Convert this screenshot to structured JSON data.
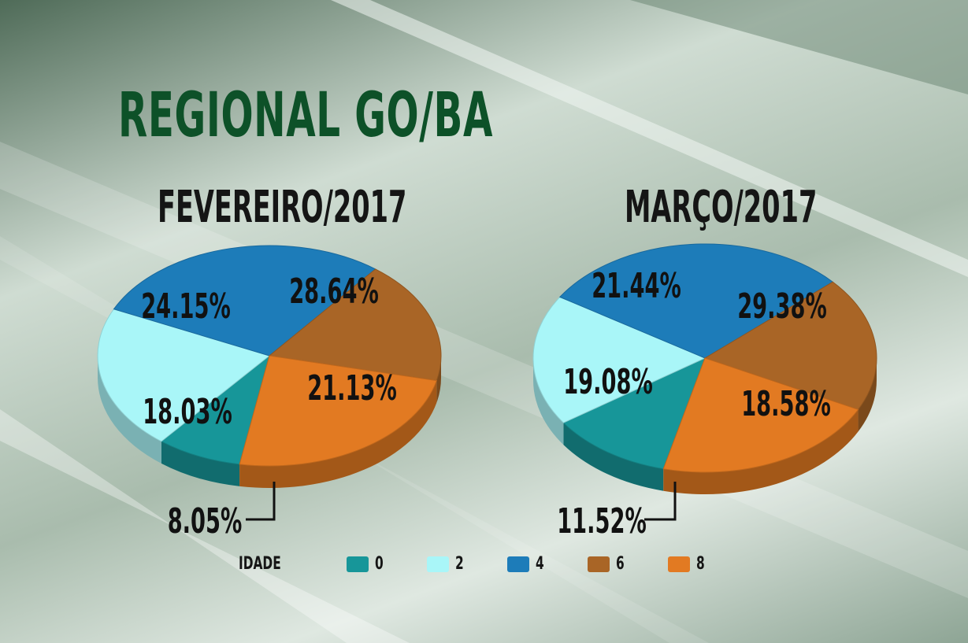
{
  "title": "REGIONAL GO/BA",
  "legend": {
    "title": "IDADE",
    "items": [
      {
        "label": "0",
        "color": "#179699"
      },
      {
        "label": "2",
        "color": "#a9f6f8"
      },
      {
        "label": "4",
        "color": "#1d7cb9"
      },
      {
        "label": "6",
        "color": "#a96526"
      },
      {
        "label": "8",
        "color": "#e27a22"
      }
    ]
  },
  "chart_data": [
    {
      "type": "pie",
      "title": "FEVEREIRO/2017",
      "categories": [
        "0",
        "2",
        "4",
        "6",
        "8"
      ],
      "values": [
        8.05,
        21.13,
        28.64,
        18.03,
        24.15
      ],
      "labels": [
        "8.05%",
        "21.13%",
        "28.64%",
        "18.03%",
        "24.15%"
      ]
    },
    {
      "type": "pie",
      "title": "MARÇO/2017",
      "categories": [
        "0",
        "2",
        "4",
        "6",
        "8"
      ],
      "values": [
        11.52,
        18.58,
        29.38,
        19.08,
        21.44
      ],
      "labels": [
        "11.52%",
        "18.58%",
        "29.38%",
        "19.08%",
        "21.44%"
      ]
    }
  ]
}
